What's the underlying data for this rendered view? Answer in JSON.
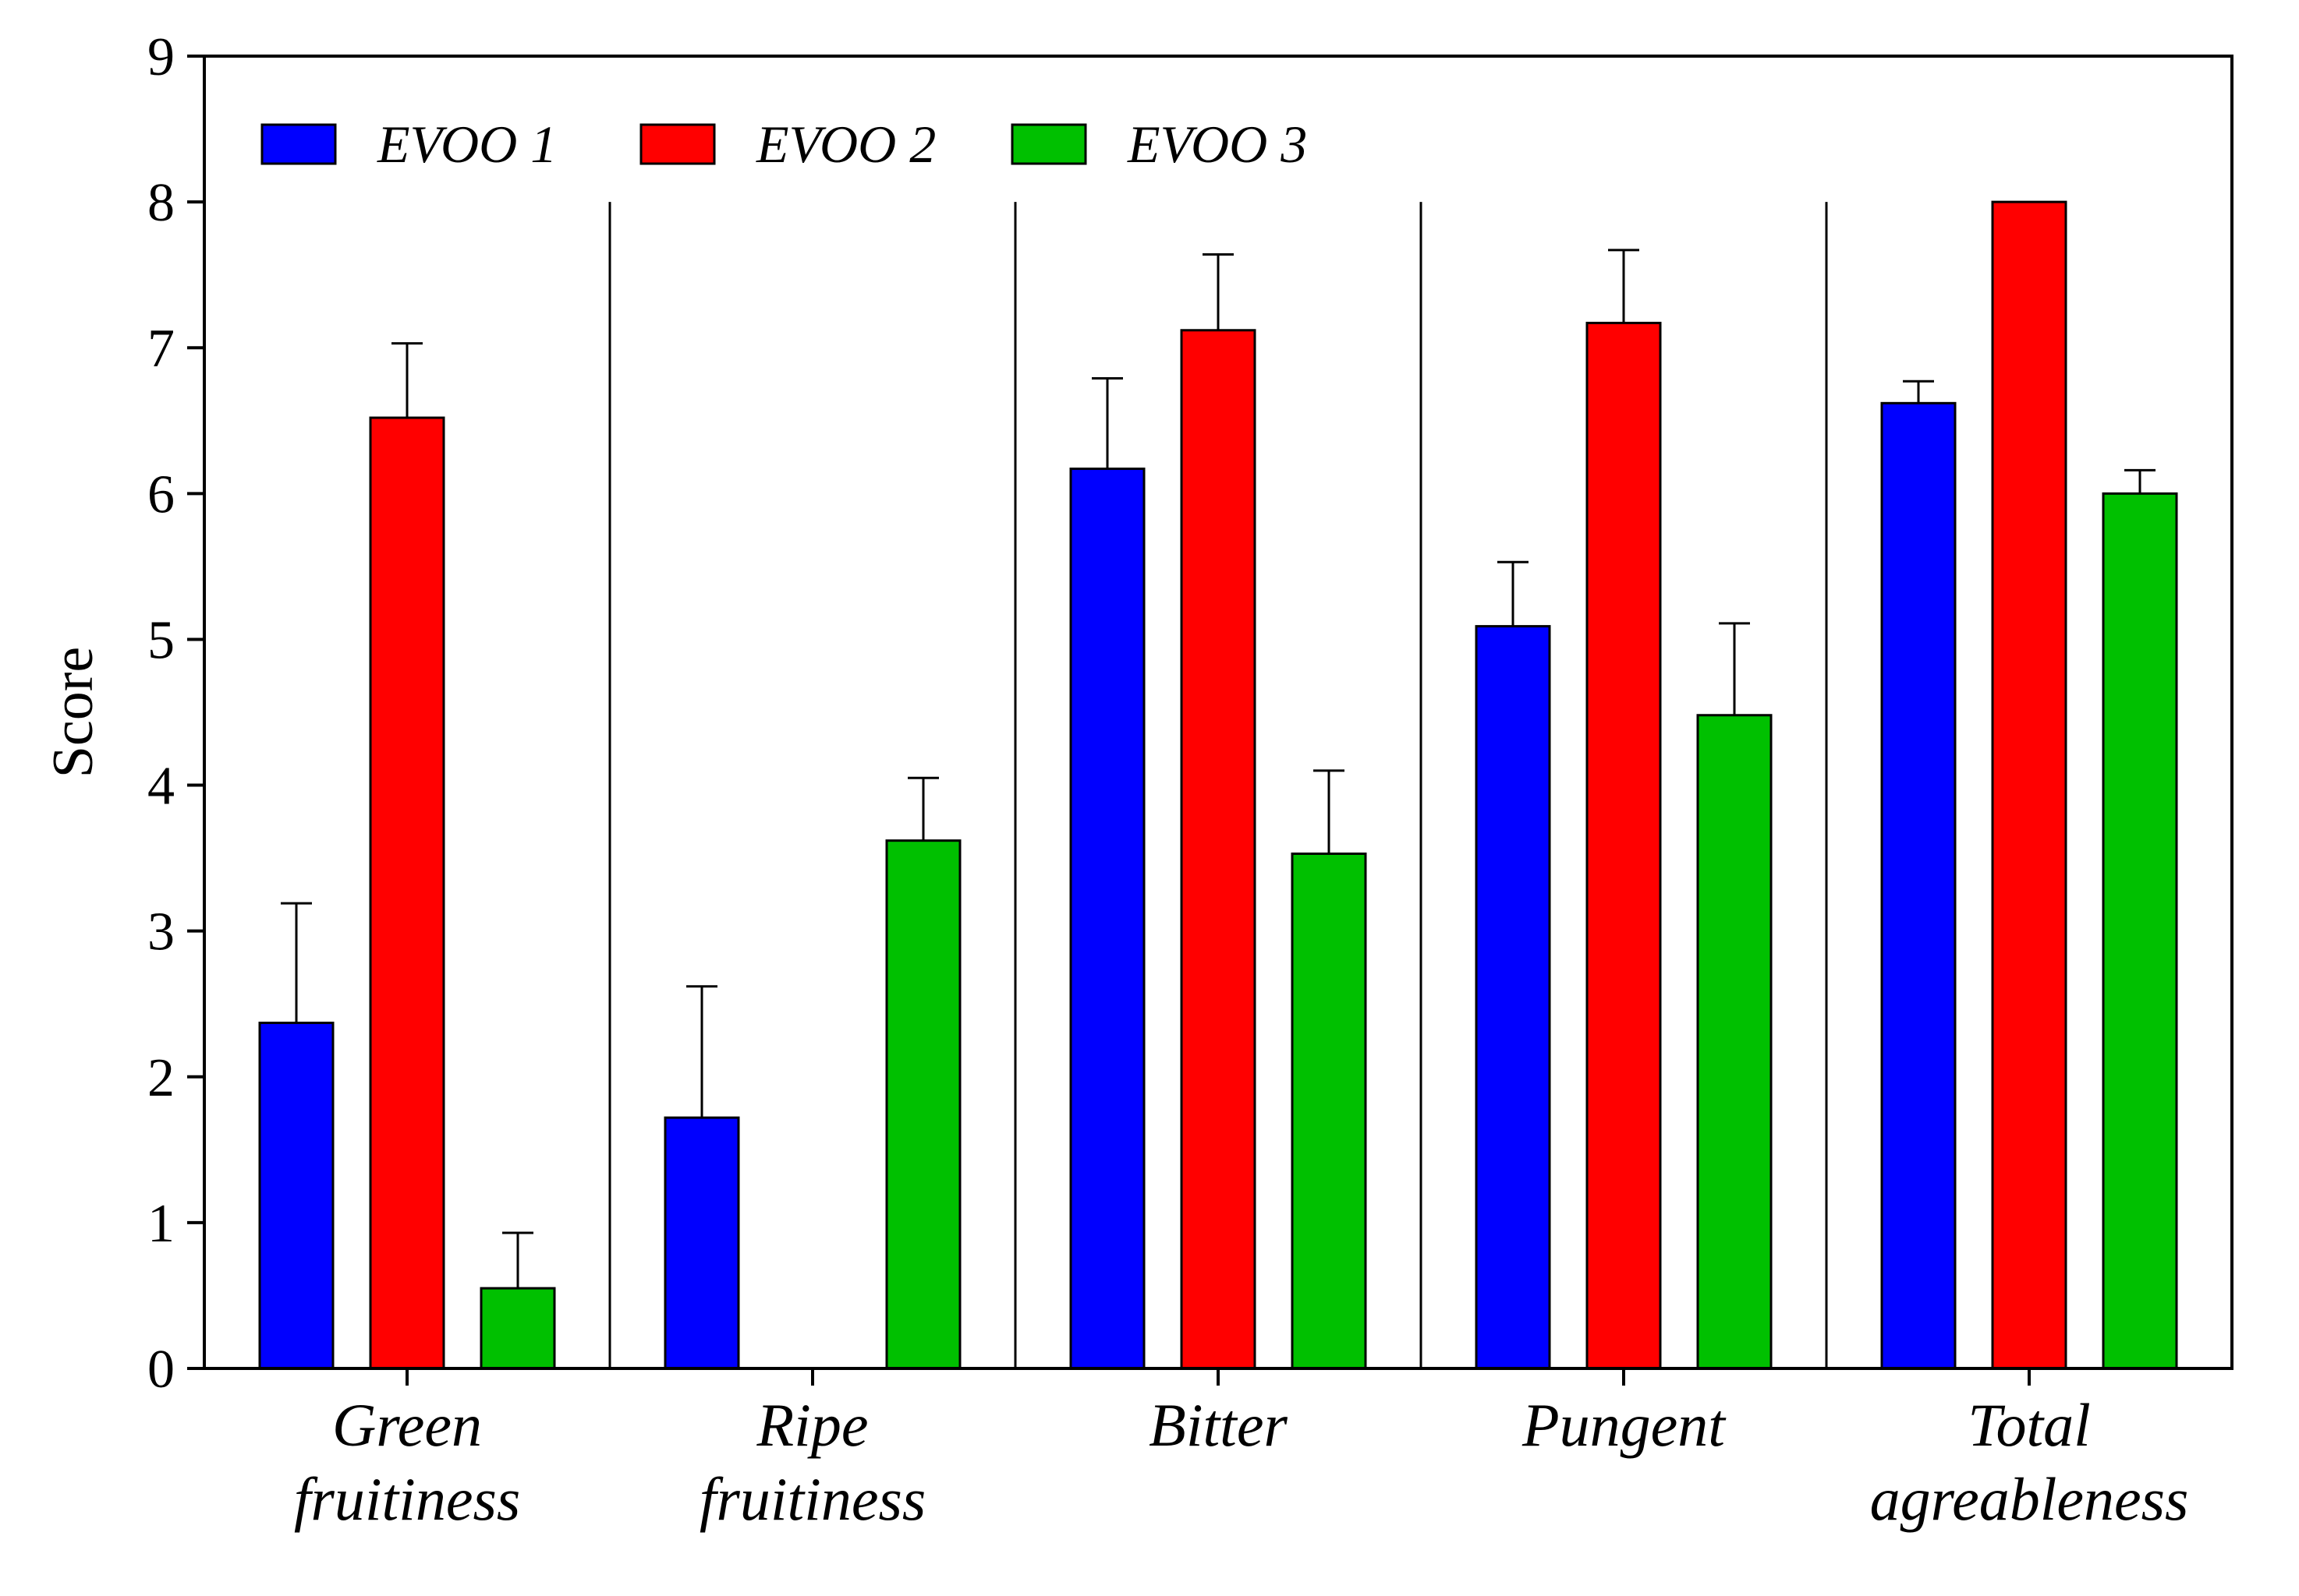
{
  "chart_data": {
    "type": "bar",
    "title": "",
    "xlabel": "",
    "ylabel": "Score",
    "ylim": [
      0,
      9
    ],
    "yticks": [
      "0",
      "1",
      "2",
      "3",
      "4",
      "5",
      "6",
      "7",
      "8",
      "9"
    ],
    "categories": [
      [
        "Green",
        "fruitiness"
      ],
      [
        "Ripe",
        "fruitiness"
      ],
      [
        "Bitter"
      ],
      [
        "Pungent"
      ],
      [
        "Total",
        "agreableness"
      ]
    ],
    "series": [
      {
        "name": "EVOO 1",
        "color": "#0000FF",
        "values": [
          2.37,
          1.72,
          6.17,
          5.09,
          6.62
        ],
        "errors": [
          0.82,
          0.9,
          0.62,
          0.44,
          0.15
        ]
      },
      {
        "name": "EVOO 2",
        "color": "#FF0000",
        "values": [
          6.52,
          0,
          7.12,
          7.17,
          8.0
        ],
        "errors": [
          0.51,
          0,
          0.52,
          0.5,
          0
        ]
      },
      {
        "name": "EVOO 3",
        "color": "#00C000",
        "values": [
          0.55,
          3.62,
          3.53,
          4.48,
          6.0
        ],
        "errors": [
          0.38,
          0.43,
          0.57,
          0.63,
          0.16
        ]
      }
    ],
    "legend": "top-left",
    "grid": false
  }
}
